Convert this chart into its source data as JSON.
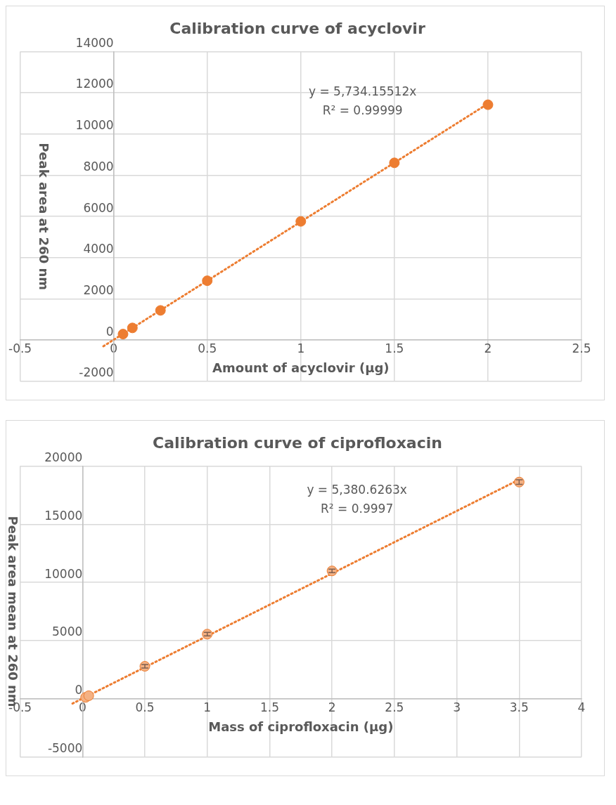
{
  "chart_data": [
    {
      "type": "scatter",
      "title": "Calibration curve of acyclovir",
      "xlabel": "Amount of acyclovir (µg)",
      "ylabel": "Peak area at 260 nm",
      "x": [
        0.05,
        0.1,
        0.25,
        0.5,
        1,
        1.5,
        2
      ],
      "series": [
        {
          "type": "scatter",
          "color": "#ed7d31",
          "values": [
            290,
            590,
            1440,
            2880,
            5760,
            8600,
            11420
          ]
        },
        {
          "type": "line",
          "color": "#ed7d31",
          "line_style": "dotted",
          "marker": "none",
          "x": [
            -0.055,
            2
          ],
          "values": [
            -300,
            11470
          ]
        }
      ],
      "xlim": [
        -0.5,
        2.5
      ],
      "xticks": [
        -0.5,
        0,
        0.5,
        1,
        1.5,
        2,
        2.5
      ],
      "ylim": [
        -2000,
        14000
      ],
      "yticks": [
        -2000,
        0,
        2000,
        4000,
        6000,
        8000,
        10000,
        12000,
        14000
      ],
      "grid": true,
      "legend": false,
      "marker": "circle",
      "annotations": [
        "y = 5,734.15512x",
        "R² = 0.99999"
      ]
    },
    {
      "type": "scatter",
      "title": "Calibration curve of ciprofloxacin",
      "xlabel": "Mass of ciprofloxacin (µg)",
      "ylabel": "Peak area mean at 260 nm",
      "x": [
        0.025,
        0.05,
        0.5,
        1,
        2,
        3.5
      ],
      "series": [
        {
          "type": "scatter",
          "color": "#f4b183",
          "values": [
            130,
            270,
            2800,
            5560,
            10990,
            18620
          ],
          "errors": [
            null,
            null,
            150,
            150,
            150,
            200
          ]
        },
        {
          "type": "line",
          "color": "#ed7d31",
          "line_style": "dotted",
          "marker": "none",
          "x": [
            -0.08,
            3.5
          ],
          "values": [
            -400,
            18830
          ]
        }
      ],
      "xlim": [
        -0.5,
        4
      ],
      "xticks": [
        -0.5,
        0,
        0.5,
        1,
        1.5,
        2,
        2.5,
        3,
        3.5,
        4
      ],
      "ylim": [
        -5000,
        20000
      ],
      "yticks": [
        -5000,
        0,
        5000,
        10000,
        15000,
        20000
      ],
      "grid": true,
      "legend": false,
      "marker": "circle",
      "annotations": [
        "y = 5,380.6263x",
        "R² = 0.9997"
      ]
    }
  ]
}
